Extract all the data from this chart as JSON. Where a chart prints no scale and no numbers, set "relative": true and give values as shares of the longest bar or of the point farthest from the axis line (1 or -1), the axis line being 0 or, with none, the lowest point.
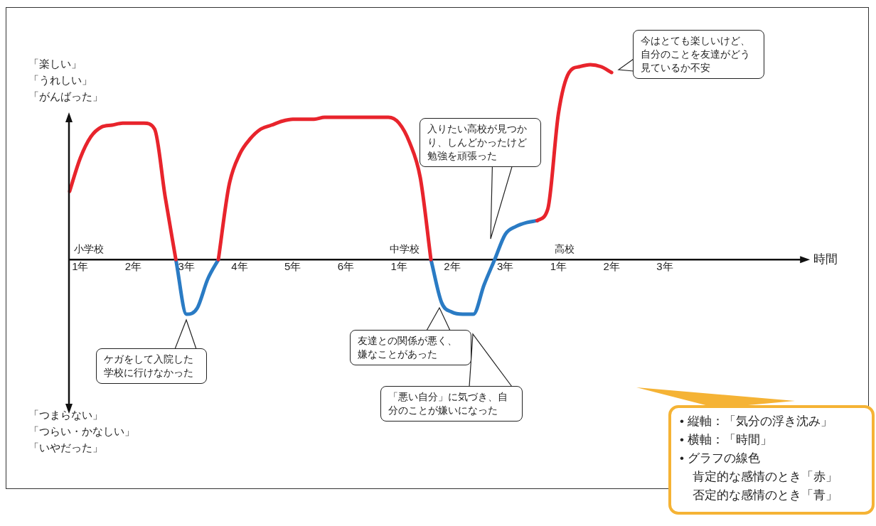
{
  "chart_data": {
    "type": "line",
    "relative": true,
    "xlabel": "時間",
    "categories": [
      null,
      "1年",
      null,
      null,
      null,
      null,
      "2年",
      null,
      null,
      null,
      null,
      "3年",
      null,
      null,
      null,
      null,
      "4年",
      null,
      null,
      null,
      null,
      "5年",
      null,
      null,
      null,
      null,
      "6年",
      null,
      null,
      null,
      null,
      "1年",
      null,
      null,
      null,
      null,
      "2年",
      null,
      null,
      null,
      null,
      "3年",
      null,
      null,
      null,
      null,
      "1年",
      null,
      null,
      null,
      null,
      "2年",
      null,
      null,
      null,
      null,
      "3年",
      null,
      null,
      null,
      null,
      null,
      null,
      null,
      null,
      null,
      null,
      null,
      null,
      null
    ],
    "series": [
      {
        "color": "#e8242c",
        "values": [
          0.35,
          0.52,
          0.63,
          0.68,
          0.69,
          0.7,
          0.7,
          0.7,
          0.67,
          0.32,
          0,
          null,
          null,
          null,
          0,
          0.38,
          0.54,
          0.62,
          0.67,
          0.69,
          0.71,
          0.72,
          0.72,
          0.72,
          0.73,
          0.73,
          0.73,
          0.73,
          0.73,
          0.73,
          0.73,
          0.7,
          0.6,
          0.42,
          0,
          null,
          null,
          null,
          null,
          null,
          null,
          null,
          null,
          null,
          0.2,
          0.26,
          0.75,
          0.96,
          0.99,
          1.0,
          0.99,
          0.96,
          null,
          null,
          null,
          null,
          null,
          null,
          null,
          null,
          null,
          null,
          null,
          null,
          null,
          null,
          null,
          null,
          null,
          null
        ]
      },
      {
        "color": "#2a7bc4",
        "values": [
          null,
          null,
          null,
          null,
          null,
          null,
          null,
          null,
          null,
          null,
          0,
          -0.28,
          -0.25,
          -0.1,
          0,
          null,
          null,
          null,
          null,
          null,
          null,
          null,
          null,
          null,
          null,
          null,
          null,
          null,
          null,
          null,
          null,
          null,
          null,
          null,
          0,
          -0.22,
          -0.27,
          -0.28,
          -0.28,
          -0.13,
          0,
          0.13,
          0.17,
          0.19,
          0.2,
          null,
          null,
          null,
          null,
          null,
          null,
          null,
          null,
          null,
          null,
          null,
          null,
          null,
          null,
          null,
          null,
          null,
          null,
          null,
          null,
          null,
          null,
          null,
          null,
          null
        ]
      }
    ],
    "annotations": [
      "「楽しい」",
      "「うれしい」",
      "「がんばった」",
      "「つまらない」",
      "「つらい・かなしい」",
      "「いやだった」",
      "小学校",
      "中学校",
      "高校",
      "ケガをして入院した学校に行けなかった",
      "友達との関係が悪く、嫌なことがあった",
      "「悪い自分」に気づき、自分のことが嫌いになった",
      "入りたい高校が見つかり、しんどかったけど勉強を頑張った",
      "今はとても楽しいけど、自分のことを友達がどう見ているか不安",
      "• 縦軸：「気分の浮き沈み」",
      "• 横軸：「時間」",
      "• グラフの線色",
      "肯定的な感情のとき「赤」",
      "否定的な感情のとき「青」"
    ]
  }
}
